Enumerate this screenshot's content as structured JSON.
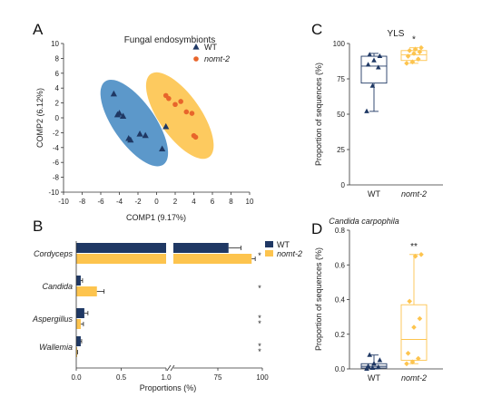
{
  "panels": {
    "a": "A",
    "b": "B",
    "c": "C",
    "d": "D"
  },
  "chart_data": [
    {
      "panel": "A",
      "type": "scatter",
      "title": "Fungal endosymbionts",
      "xlabel": "COMP1 (9.17%)",
      "ylabel": "COMP2 (6.12%)",
      "xlim": [
        -10,
        10
      ],
      "ylim": [
        -10,
        10
      ],
      "xticks": [
        "-10",
        "-8",
        "-6",
        "-4",
        "-2",
        "0",
        "2",
        "4",
        "6",
        "8",
        "10"
      ],
      "yticks": [
        "-10",
        "-8",
        "-6",
        "-4",
        "-2",
        "0",
        "2",
        "4",
        "6",
        "8",
        "10"
      ],
      "legend": "top-right",
      "series": [
        {
          "name": "WT",
          "marker": "triangle",
          "color": "#1f3864",
          "ellipse_color": "#4a8dc4",
          "x": [
            -4.6,
            -4.2,
            -4.0,
            -3.6,
            -3.0,
            -2.8,
            -1.8,
            -1.2,
            0.6,
            1.0
          ],
          "y": [
            3.2,
            0.4,
            0.6,
            0.2,
            -2.8,
            -3.0,
            -2.2,
            -2.4,
            -4.2,
            -1.2
          ]
        },
        {
          "name": "nomt-2",
          "marker": "circle",
          "color": "#e8652b",
          "ellipse_color": "#fdc44e",
          "x": [
            1.0,
            1.3,
            2.0,
            2.6,
            3.2,
            3.8,
            4.0,
            4.2
          ],
          "y": [
            3.0,
            2.6,
            1.8,
            2.2,
            0.8,
            0.6,
            -2.4,
            -2.6
          ]
        }
      ]
    },
    {
      "panel": "B",
      "type": "bar",
      "orientation": "horizontal",
      "categories": [
        "Cordyceps",
        "Candida",
        "Aspergillus",
        "Wallemia"
      ],
      "xlabel": "Proportions (%)",
      "xticks": [
        "0.0",
        "0.5",
        "1.0",
        "75",
        "100"
      ],
      "axis_break": [
        1.0,
        50
      ],
      "legend": "top-right",
      "series": [
        {
          "name": "WT",
          "color": "#1f3864",
          "values": [
            81.0,
            0.05,
            0.09,
            0.05
          ],
          "errors": [
            7.0,
            0.02,
            0.04,
            0.01
          ]
        },
        {
          "name": "nomt-2",
          "color": "#fdc44e",
          "values": [
            94.0,
            0.23,
            0.05,
            0.01
          ],
          "errors": [
            2.0,
            0.08,
            0.03,
            0.005
          ]
        }
      ],
      "significance": [
        "*",
        "*",
        "**",
        "**"
      ]
    },
    {
      "panel": "C",
      "type": "box",
      "title": "YLS",
      "ylabel": "Proportion of sequences (%)",
      "ylim": [
        0,
        100
      ],
      "yticks": [
        "0",
        "25",
        "50",
        "75",
        "100"
      ],
      "categories": [
        "WT",
        "nomt-2"
      ],
      "series": [
        {
          "name": "WT",
          "color": "#1f3864",
          "whisker_low": 52,
          "q1": 72,
          "median": 84,
          "q3": 91,
          "whisker_high": 93,
          "points": [
            52,
            70,
            83,
            85,
            88,
            91,
            92
          ]
        },
        {
          "name": "nomt-2",
          "color": "#fdc44e",
          "whisker_low": 86,
          "q1": 88,
          "median": 92,
          "q3": 95,
          "whisker_high": 97,
          "points": [
            86,
            87,
            89,
            91,
            93,
            94,
            95,
            96,
            97
          ]
        }
      ],
      "significance": "*"
    },
    {
      "panel": "D",
      "type": "box",
      "title": "Candida carpophila",
      "ylabel": "Proportion of sequences (%)",
      "ylim": [
        0,
        0.8
      ],
      "yticks": [
        "0.0",
        "0.2",
        "0.4",
        "0.6",
        "0.8"
      ],
      "categories": [
        "WT",
        "nomt-2"
      ],
      "series": [
        {
          "name": "WT",
          "color": "#1f3864",
          "whisker_low": 0.0,
          "q1": 0.005,
          "median": 0.015,
          "q3": 0.03,
          "whisker_high": 0.08,
          "points": [
            0.0,
            0.005,
            0.01,
            0.015,
            0.03,
            0.05,
            0.08
          ]
        },
        {
          "name": "nomt-2",
          "color": "#fdc44e",
          "whisker_low": 0.03,
          "q1": 0.05,
          "median": 0.17,
          "q3": 0.37,
          "whisker_high": 0.66,
          "points": [
            0.03,
            0.04,
            0.06,
            0.09,
            0.24,
            0.29,
            0.39,
            0.65,
            0.66
          ]
        }
      ],
      "significance": "**"
    }
  ]
}
